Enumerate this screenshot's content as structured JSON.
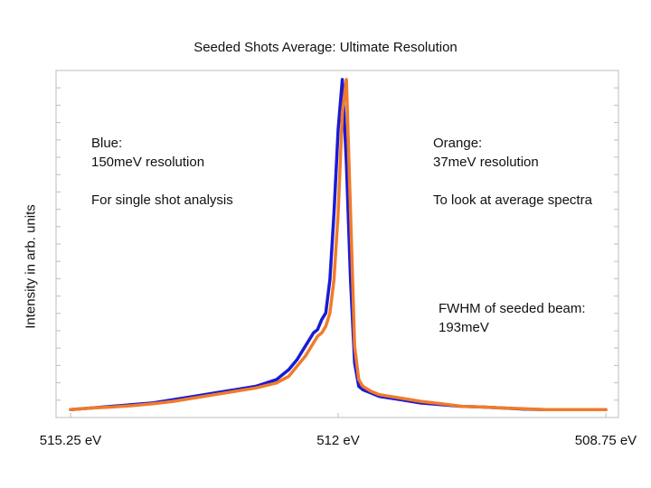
{
  "chart_data": {
    "type": "line",
    "title": "Seeded Shots Average: Ultimate Resolution",
    "xlabel": "",
    "ylabel": "Intensity in arb. units",
    "x_ticks": [
      {
        "value": 515.25,
        "label": "515.25 eV"
      },
      {
        "value": 512,
        "label": "512 eV"
      },
      {
        "value": 508.75,
        "label": "508.75 eV"
      }
    ],
    "xlim": [
      515.25,
      508.75
    ],
    "ylim": [
      0,
      1
    ],
    "grid": false,
    "series": [
      {
        "color": "#1a1ad6",
        "x": [
          515.25,
          515.0,
          514.75,
          514.5,
          514.25,
          514.0,
          513.75,
          513.5,
          513.25,
          513.0,
          512.75,
          512.6,
          512.5,
          512.4,
          512.3,
          512.25,
          512.2,
          512.15,
          512.1,
          512.05,
          512.0,
          511.95,
          511.9,
          511.85,
          511.8,
          511.75,
          511.7,
          511.6,
          511.5,
          511.25,
          511.0,
          510.75,
          510.5,
          510.25,
          510.0,
          509.75,
          509.5,
          509.25,
          509.0,
          508.75
        ],
        "y": [
          0.01,
          0.015,
          0.02,
          0.025,
          0.03,
          0.04,
          0.05,
          0.06,
          0.07,
          0.08,
          0.1,
          0.13,
          0.16,
          0.2,
          0.24,
          0.25,
          0.28,
          0.3,
          0.4,
          0.6,
          0.85,
          1.0,
          0.75,
          0.4,
          0.15,
          0.08,
          0.07,
          0.06,
          0.05,
          0.04,
          0.03,
          0.025,
          0.02,
          0.018,
          0.015,
          0.012,
          0.01,
          0.01,
          0.01,
          0.01
        ]
      },
      {
        "color": "#f07b2a",
        "x": [
          515.25,
          515.0,
          514.75,
          514.5,
          514.25,
          514.0,
          513.75,
          513.5,
          513.25,
          513.0,
          512.75,
          512.6,
          512.5,
          512.4,
          512.3,
          512.25,
          512.2,
          512.15,
          512.1,
          512.05,
          512.0,
          511.95,
          511.9,
          511.85,
          511.8,
          511.75,
          511.7,
          511.6,
          511.5,
          511.25,
          511.0,
          510.75,
          510.5,
          510.25,
          510.0,
          509.75,
          509.5,
          509.25,
          509.0,
          508.75
        ],
        "y": [
          0.01,
          0.015,
          0.018,
          0.022,
          0.028,
          0.035,
          0.045,
          0.055,
          0.065,
          0.075,
          0.09,
          0.11,
          0.14,
          0.17,
          0.21,
          0.23,
          0.24,
          0.26,
          0.3,
          0.4,
          0.6,
          0.9,
          1.0,
          0.6,
          0.2,
          0.1,
          0.08,
          0.065,
          0.055,
          0.045,
          0.035,
          0.028,
          0.02,
          0.018,
          0.015,
          0.013,
          0.01,
          0.01,
          0.01,
          0.01
        ]
      }
    ],
    "annotations": [
      {
        "lines": [
          "Blue:",
          "150meV resolution",
          "",
          "For single shot analysis"
        ]
      },
      {
        "lines": [
          "Orange:",
          "37meV resolution",
          "",
          "To look at average spectra"
        ]
      },
      {
        "lines": [
          "FWHM of seeded beam:",
          "193meV"
        ]
      }
    ]
  }
}
